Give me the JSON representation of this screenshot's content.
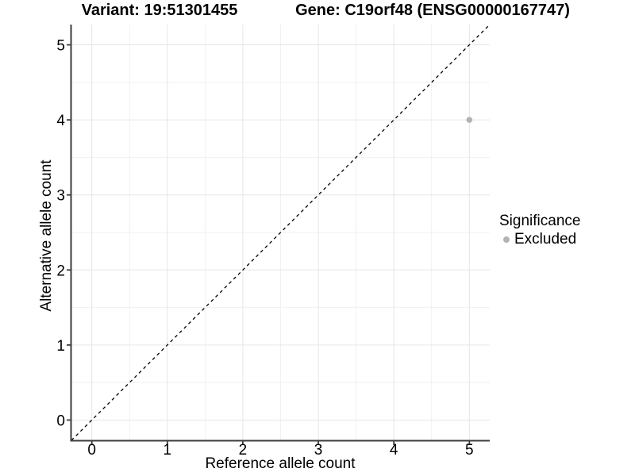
{
  "header": {
    "variant_title": "Variant: 19:51301455",
    "gene_title": "Gene: C19orf48 (ENSG00000167747)"
  },
  "legend": {
    "title": "Significance",
    "items": [
      {
        "label": "Excluded",
        "color": "#b3b3b3"
      }
    ]
  },
  "chart_data": {
    "type": "scatter",
    "xlabel": "Reference allele count",
    "ylabel": "Alternative allele count",
    "xlim": [
      -0.27,
      5.27
    ],
    "ylim": [
      -0.27,
      5.27
    ],
    "x_ticks": [
      0,
      1,
      2,
      3,
      4,
      5
    ],
    "y_ticks": [
      0,
      1,
      2,
      3,
      4,
      5
    ],
    "x_minor_ticks": [
      0.5,
      1.5,
      2.5,
      3.5,
      4.5
    ],
    "y_minor_ticks": [
      0.5,
      1.5,
      2.5,
      3.5,
      4.5
    ],
    "grid": true,
    "legend_position": "right",
    "series": [
      {
        "name": "Excluded",
        "color": "#b3b3b3",
        "points": [
          {
            "x": 5,
            "y": 4
          }
        ]
      }
    ],
    "reference_line": {
      "type": "identity",
      "from": [
        -0.27,
        -0.27
      ],
      "to": [
        5.27,
        5.27
      ],
      "style": "dashed",
      "color": "#000000"
    }
  },
  "colors": {
    "background": "#ffffff",
    "grid_major": "#e6e6e6",
    "grid_minor": "#f1f1f1",
    "axis": "#3d3d3d",
    "text": "#000000"
  }
}
